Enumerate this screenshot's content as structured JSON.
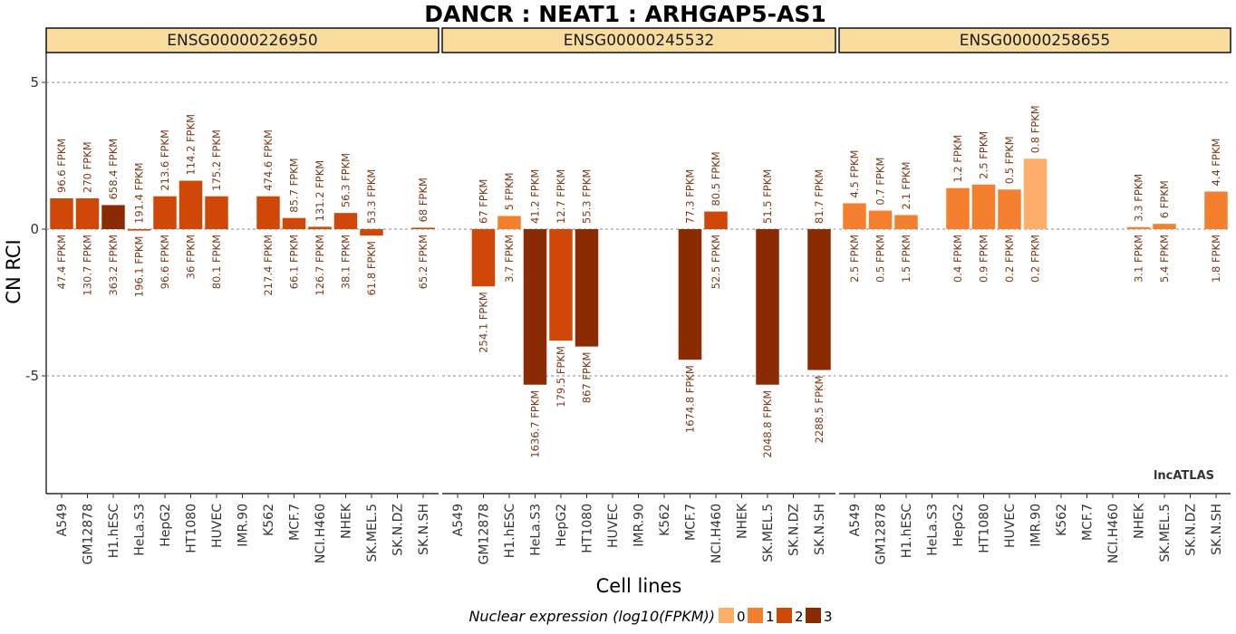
{
  "chart_data": {
    "type": "bar",
    "title": "DANCR : NEAT1 : ARHGAP5-AS1",
    "xlabel": "Cell lines",
    "ylabel": "CN RCI",
    "ylim": [
      -9,
      6
    ],
    "yticks": [
      5,
      0,
      -5
    ],
    "ytick_labels": [
      "5",
      "0",
      "-5"
    ],
    "grid": true,
    "watermark": "lncATLAS",
    "categories": [
      "A549",
      "GM12878",
      "H1.hESC",
      "HeLa.S3",
      "HepG2",
      "HT1080",
      "HUVEC",
      "IMR.90",
      "K562",
      "MCF.7",
      "NCI.H460",
      "NHEK",
      "SK.MEL.5",
      "SK.N.DZ",
      "SK.N.SH"
    ],
    "color_scale": {
      "0": "#fdae6b",
      "1": "#f4802f",
      "2": "#d04807",
      "3": "#8a2b04"
    },
    "legend": {
      "title": "Nuclear expression (log10(FPKM))",
      "position": "bottom",
      "items": [
        {
          "label": "0",
          "color": "#fdae6b"
        },
        {
          "label": "1",
          "color": "#f4802f"
        },
        {
          "label": "2",
          "color": "#d04807"
        },
        {
          "label": "3",
          "color": "#8a2b04"
        }
      ]
    },
    "panels": [
      {
        "name": "ENSG00000226950",
        "values": [
          1.05,
          1.05,
          0.82,
          -0.05,
          1.12,
          1.65,
          1.12,
          null,
          1.12,
          0.38,
          0.08,
          0.55,
          -0.22,
          null,
          0.05
        ],
        "nuclear_labels": [
          "96.6 FPKM",
          "270 FPKM",
          "658.4 FPKM",
          "191.4 FPKM",
          "213.6 FPKM",
          "114.2 FPKM",
          "175.2 FPKM",
          null,
          "474.6 FPKM",
          "85.7 FPKM",
          "131.2 FPKM",
          "56.3 FPKM",
          "53.3 FPKM",
          null,
          "68 FPKM"
        ],
        "cytoplasmic_labels": [
          "47.4 FPKM",
          "130.7 FPKM",
          "363.2 FPKM",
          "196.1 FPKM",
          "96.6 FPKM",
          "36 FPKM",
          "80.1 FPKM",
          null,
          "217.4 FPKM",
          "66.1 FPKM",
          "126.7 FPKM",
          "38.1 FPKM",
          "61.8 FPKM",
          null,
          "65.2 FPKM"
        ],
        "color_level": [
          2,
          2,
          3,
          2,
          2,
          2,
          2,
          null,
          2,
          2,
          2,
          2,
          2,
          null,
          2
        ]
      },
      {
        "name": "ENSG00000245532",
        "values": [
          null,
          -1.95,
          0.45,
          -5.3,
          -3.8,
          -4.0,
          null,
          null,
          null,
          -4.45,
          0.6,
          null,
          -5.3,
          null,
          -4.8
        ],
        "nuclear_labels": [
          null,
          "67 FPKM",
          "5 FPKM",
          "41.2 FPKM",
          "12.7 FPKM",
          "55.3 FPKM",
          null,
          null,
          null,
          "77.3 FPKM",
          "80.5 FPKM",
          null,
          "51.5 FPKM",
          null,
          "81.7 FPKM"
        ],
        "cytoplasmic_labels": [
          null,
          "254.1 FPKM",
          "3.7 FPKM",
          "1636.7 FPKM",
          "179.5 FPKM",
          "867 FPKM",
          null,
          null,
          null,
          "1674.8 FPKM",
          "52.5 FPKM",
          null,
          "2048.8 FPKM",
          null,
          "2288.5 FPKM"
        ],
        "color_level": [
          null,
          2,
          1,
          3,
          2,
          3,
          null,
          null,
          null,
          3,
          2,
          null,
          3,
          null,
          3
        ]
      },
      {
        "name": "ENSG00000258655",
        "values": [
          0.88,
          0.63,
          0.48,
          null,
          1.4,
          1.52,
          1.35,
          2.4,
          null,
          null,
          null,
          0.07,
          0.18,
          null,
          1.28
        ],
        "nuclear_labels": [
          "4.5 FPKM",
          "0.7 FPKM",
          "2.1 FPKM",
          null,
          "1.2 FPKM",
          "2.5 FPKM",
          "0.5 FPKM",
          "0.8 FPKM",
          null,
          null,
          null,
          "3.3 FPKM",
          "6 FPKM",
          null,
          "4.4 FPKM"
        ],
        "cytoplasmic_labels": [
          "2.5 FPKM",
          "0.5 FPKM",
          "1.5 FPKM",
          null,
          "0.4 FPKM",
          "0.9 FPKM",
          "0.2 FPKM",
          "0.2 FPKM",
          null,
          null,
          null,
          "3.1 FPKM",
          "5.4 FPKM",
          null,
          "1.8 FPKM"
        ],
        "color_level": [
          1,
          1,
          1,
          null,
          1,
          1,
          1,
          0,
          null,
          null,
          null,
          1,
          1,
          null,
          1
        ]
      }
    ]
  }
}
